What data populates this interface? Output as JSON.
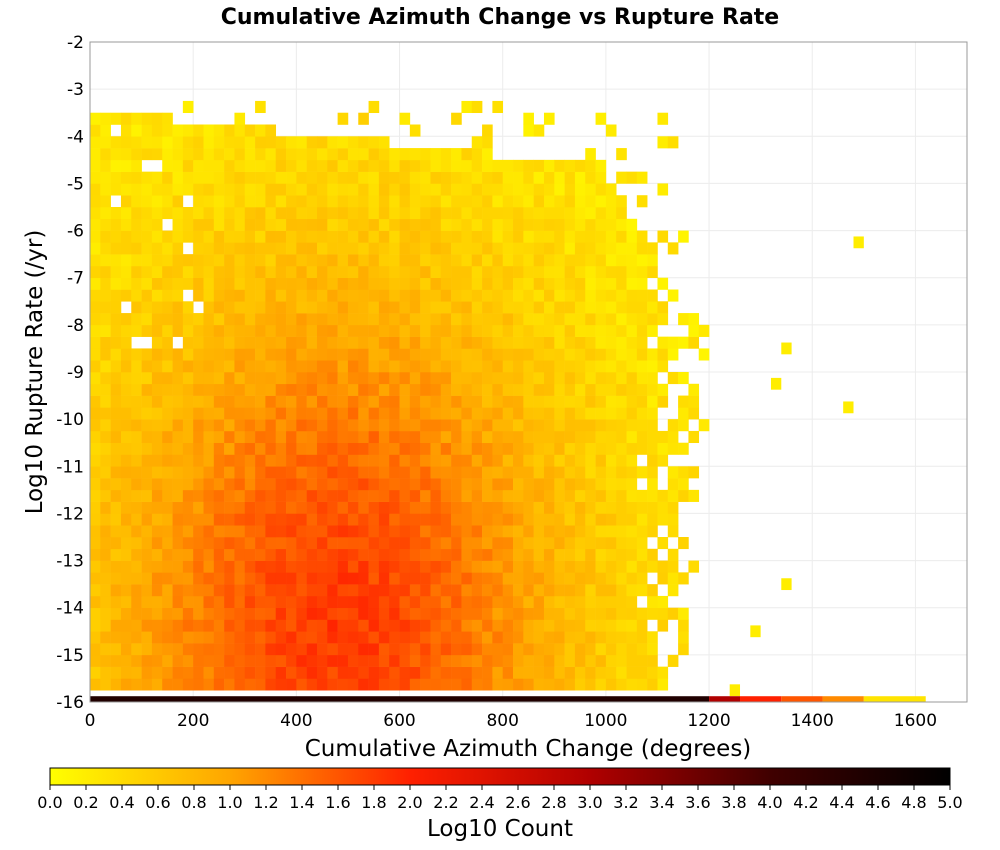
{
  "chart_data": {
    "type": "heatmap",
    "title": "Cumulative Azimuth Change vs Rupture Rate",
    "xlabel": "Cumulative Azimuth Change (degrees)",
    "ylabel": "Log10 Rupture Rate (/yr)",
    "xlim": [
      0,
      1700
    ],
    "ylim": [
      -16,
      -2
    ],
    "x_ticks": [
      "0",
      "200",
      "400",
      "600",
      "800",
      "1000",
      "1200",
      "1400",
      "1600"
    ],
    "y_ticks": [
      "-2",
      "-3",
      "-4",
      "-5",
      "-6",
      "-7",
      "-8",
      "-9",
      "-10",
      "-11",
      "-12",
      "-13",
      "-14",
      "-15",
      "-16"
    ],
    "x_bin_width_degrees": 20,
    "y_bin_height_log10": 0.25,
    "grid": true,
    "colorbar": {
      "label": "Log10 Count",
      "range": [
        0,
        5
      ],
      "ticks": [
        "0.0",
        "0.2",
        "0.4",
        "0.6",
        "0.8",
        "1.0",
        "1.2",
        "1.4",
        "1.6",
        "1.8",
        "2.0",
        "2.2",
        "2.4",
        "2.6",
        "2.8",
        "3.0",
        "3.2",
        "3.4",
        "3.6",
        "3.8",
        "4.0",
        "4.2",
        "4.4",
        "4.6",
        "4.8",
        "5.0"
      ],
      "colors": [
        "#ffff00",
        "#ffa500",
        "#ff2000",
        "#b00000",
        "#400000",
        "#000000"
      ],
      "position": "bottom"
    },
    "bottom_row": {
      "log10_rate": -16,
      "x_start": 0,
      "x_end": 1620,
      "description": "dense bin row at lowest rate",
      "segments": [
        {
          "x0": 0,
          "x1": 1200,
          "value": 4.5
        },
        {
          "x0": 1200,
          "x1": 1260,
          "value": 3.0
        },
        {
          "x0": 1260,
          "x1": 1340,
          "value": 2.0
        },
        {
          "x0": 1340,
          "x1": 1420,
          "value": 1.6
        },
        {
          "x0": 1420,
          "x1": 1500,
          "value": 1.2
        },
        {
          "x0": 1500,
          "x1": 1620,
          "value": 0.3
        }
      ]
    },
    "isolated_bins": [
      {
        "x": 1490,
        "y": -6.25,
        "value": 0.2
      },
      {
        "x": 1470,
        "y": -9.75,
        "value": 0.2
      },
      {
        "x": 1350,
        "y": -8.5,
        "value": 0.2
      },
      {
        "x": 1330,
        "y": -9.25,
        "value": 0.2
      },
      {
        "x": 1350,
        "y": -13.5,
        "value": 0.2
      },
      {
        "x": 1290,
        "y": -14.5,
        "value": 0.2
      },
      {
        "x": 1250,
        "y": -15.75,
        "value": 0.2
      }
    ],
    "density_summary": {
      "peak_x": 480,
      "peak_y": -14.5,
      "peak_value": 1.8,
      "edge_value": 0.2
    }
  }
}
